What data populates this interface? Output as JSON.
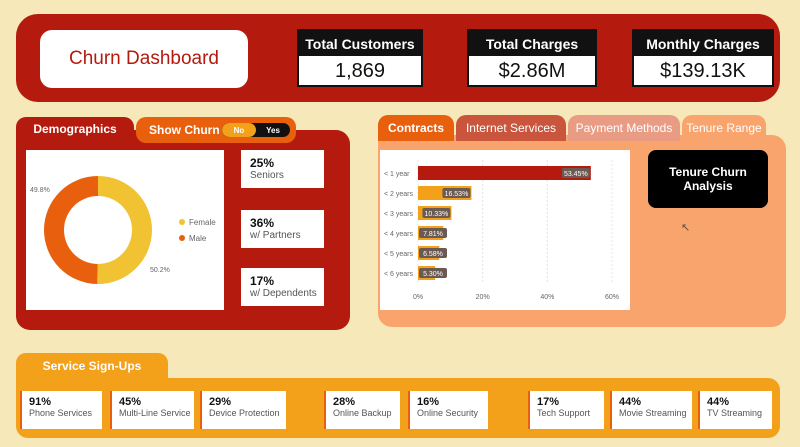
{
  "header": {
    "title": "Churn Dashboard",
    "kpis": [
      {
        "label": "Total Customers",
        "value": "1,869"
      },
      {
        "label": "Total Charges",
        "value": "$2.86M"
      },
      {
        "label": "Monthly Charges",
        "value": "$139.13K"
      }
    ]
  },
  "demographics": {
    "tab_label": "Demographics",
    "show_churn": {
      "label": "Show Churn",
      "no": "No",
      "yes": "Yes",
      "selected": "No"
    },
    "gender_chart": {
      "legend": [
        {
          "name": "Female",
          "color": "#f1c232"
        },
        {
          "name": "Male",
          "color": "#e8600e"
        }
      ],
      "labels": {
        "female": "50.2%",
        "male": "49.8%"
      }
    },
    "stats": [
      {
        "pct": "25%",
        "label": "Seniors"
      },
      {
        "pct": "36%",
        "label": "w/ Partners"
      },
      {
        "pct": "17%",
        "label": "w/ Dependents"
      }
    ]
  },
  "tabs": [
    "Contracts",
    "Internet Services",
    "Payment Methods",
    "Tenure Range"
  ],
  "analysis": {
    "title": "Tenure Churn Analysis"
  },
  "chart_data": [
    {
      "type": "pie",
      "categories": [
        "Female",
        "Male"
      ],
      "values": [
        50.2,
        49.8
      ],
      "title": "",
      "colors": [
        "#f1c232",
        "#e8600e"
      ],
      "legend": "right"
    },
    {
      "type": "bar",
      "orientation": "horizontal",
      "categories": [
        "< 1 year",
        "< 2 years",
        "< 3 years",
        "< 4 years",
        "< 5 years",
        "< 6 years"
      ],
      "values": [
        53.45,
        16.53,
        10.33,
        7.81,
        6.58,
        5.3
      ],
      "data_labels": [
        "53.45%",
        "16.53%",
        "10.33%",
        "7.81%",
        "6.58%",
        "5.30%"
      ],
      "xlim": [
        0,
        60
      ],
      "xticks": [
        "0%",
        "20%",
        "40%",
        "60%"
      ],
      "title": "",
      "xlabel": "",
      "ylabel": "",
      "grid": true
    }
  ],
  "services": {
    "tab_label": "Service Sign-Ups",
    "items": [
      {
        "pct": "91%",
        "label": "Phone Services"
      },
      {
        "pct": "45%",
        "label": "Multi-Line Service"
      },
      {
        "pct": "29%",
        "label": "Device Protection"
      },
      {
        "pct": "28%",
        "label": "Online Backup"
      },
      {
        "pct": "16%",
        "label": "Online Security"
      },
      {
        "pct": "17%",
        "label": "Tech Support"
      },
      {
        "pct": "44%",
        "label": "Movie Streaming"
      },
      {
        "pct": "44%",
        "label": "TV Streaming"
      }
    ]
  },
  "colors": {
    "primary": "#b41a0e",
    "accent": "#e8600e",
    "secondary": "#f3a01a",
    "bar": "#b41a0e",
    "bar_secondary": "#6b5a52"
  }
}
